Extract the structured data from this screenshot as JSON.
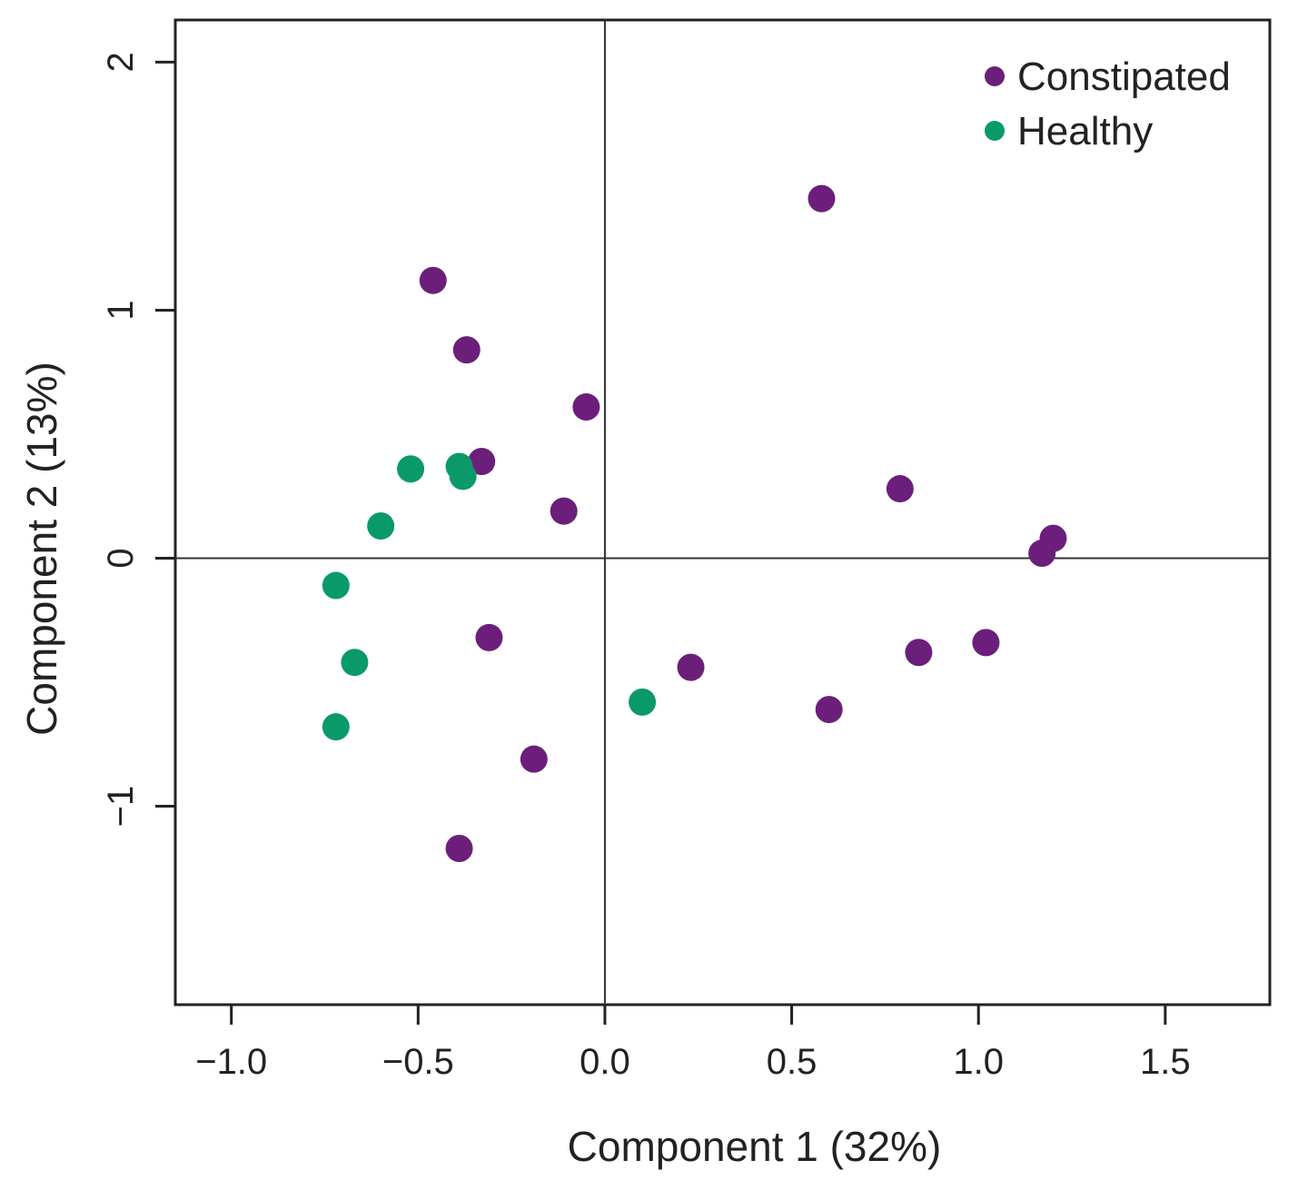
{
  "chart_data": {
    "type": "scatter",
    "xlabel": "Component 1 (32%)",
    "ylabel": "Component 2 (13%)",
    "xlim": [
      -1.15,
      1.78
    ],
    "ylim": [
      -1.8,
      2.17
    ],
    "x_ticks": [
      -1.0,
      -0.5,
      0.0,
      0.5,
      1.0,
      1.5
    ],
    "x_tick_labels": [
      "−1.0",
      "−0.5",
      "0.0",
      "0.5",
      "1.0",
      "1.5"
    ],
    "y_ticks": [
      -1,
      0,
      1,
      2
    ],
    "y_tick_labels": [
      "−1",
      "0",
      "1",
      "2"
    ],
    "reference_lines": {
      "x": 0,
      "y": 0
    },
    "grid": false,
    "legend_position": "top-right",
    "series": [
      {
        "name": "Constipated",
        "color": "#6b1f7b",
        "points": [
          {
            "x": 0.58,
            "y": 1.45
          },
          {
            "x": -0.46,
            "y": 1.12
          },
          {
            "x": -0.37,
            "y": 0.84
          },
          {
            "x": -0.05,
            "y": 0.61
          },
          {
            "x": -0.33,
            "y": 0.39
          },
          {
            "x": -0.11,
            "y": 0.19
          },
          {
            "x": 0.79,
            "y": 0.28
          },
          {
            "x": 1.2,
            "y": 0.08
          },
          {
            "x": 1.17,
            "y": 0.02
          },
          {
            "x": -0.31,
            "y": -0.32
          },
          {
            "x": 0.23,
            "y": -0.44
          },
          {
            "x": 0.84,
            "y": -0.38
          },
          {
            "x": 1.02,
            "y": -0.34
          },
          {
            "x": 0.6,
            "y": -0.61
          },
          {
            "x": -0.19,
            "y": -0.81
          },
          {
            "x": -0.39,
            "y": -1.17
          }
        ]
      },
      {
        "name": "Healthy",
        "color": "#0a9a6a",
        "points": [
          {
            "x": -0.52,
            "y": 0.36
          },
          {
            "x": -0.39,
            "y": 0.37
          },
          {
            "x": -0.38,
            "y": 0.33
          },
          {
            "x": -0.6,
            "y": 0.13
          },
          {
            "x": -0.72,
            "y": -0.11
          },
          {
            "x": -0.67,
            "y": -0.42
          },
          {
            "x": -0.72,
            "y": -0.68
          },
          {
            "x": 0.1,
            "y": -0.58
          }
        ]
      }
    ]
  }
}
